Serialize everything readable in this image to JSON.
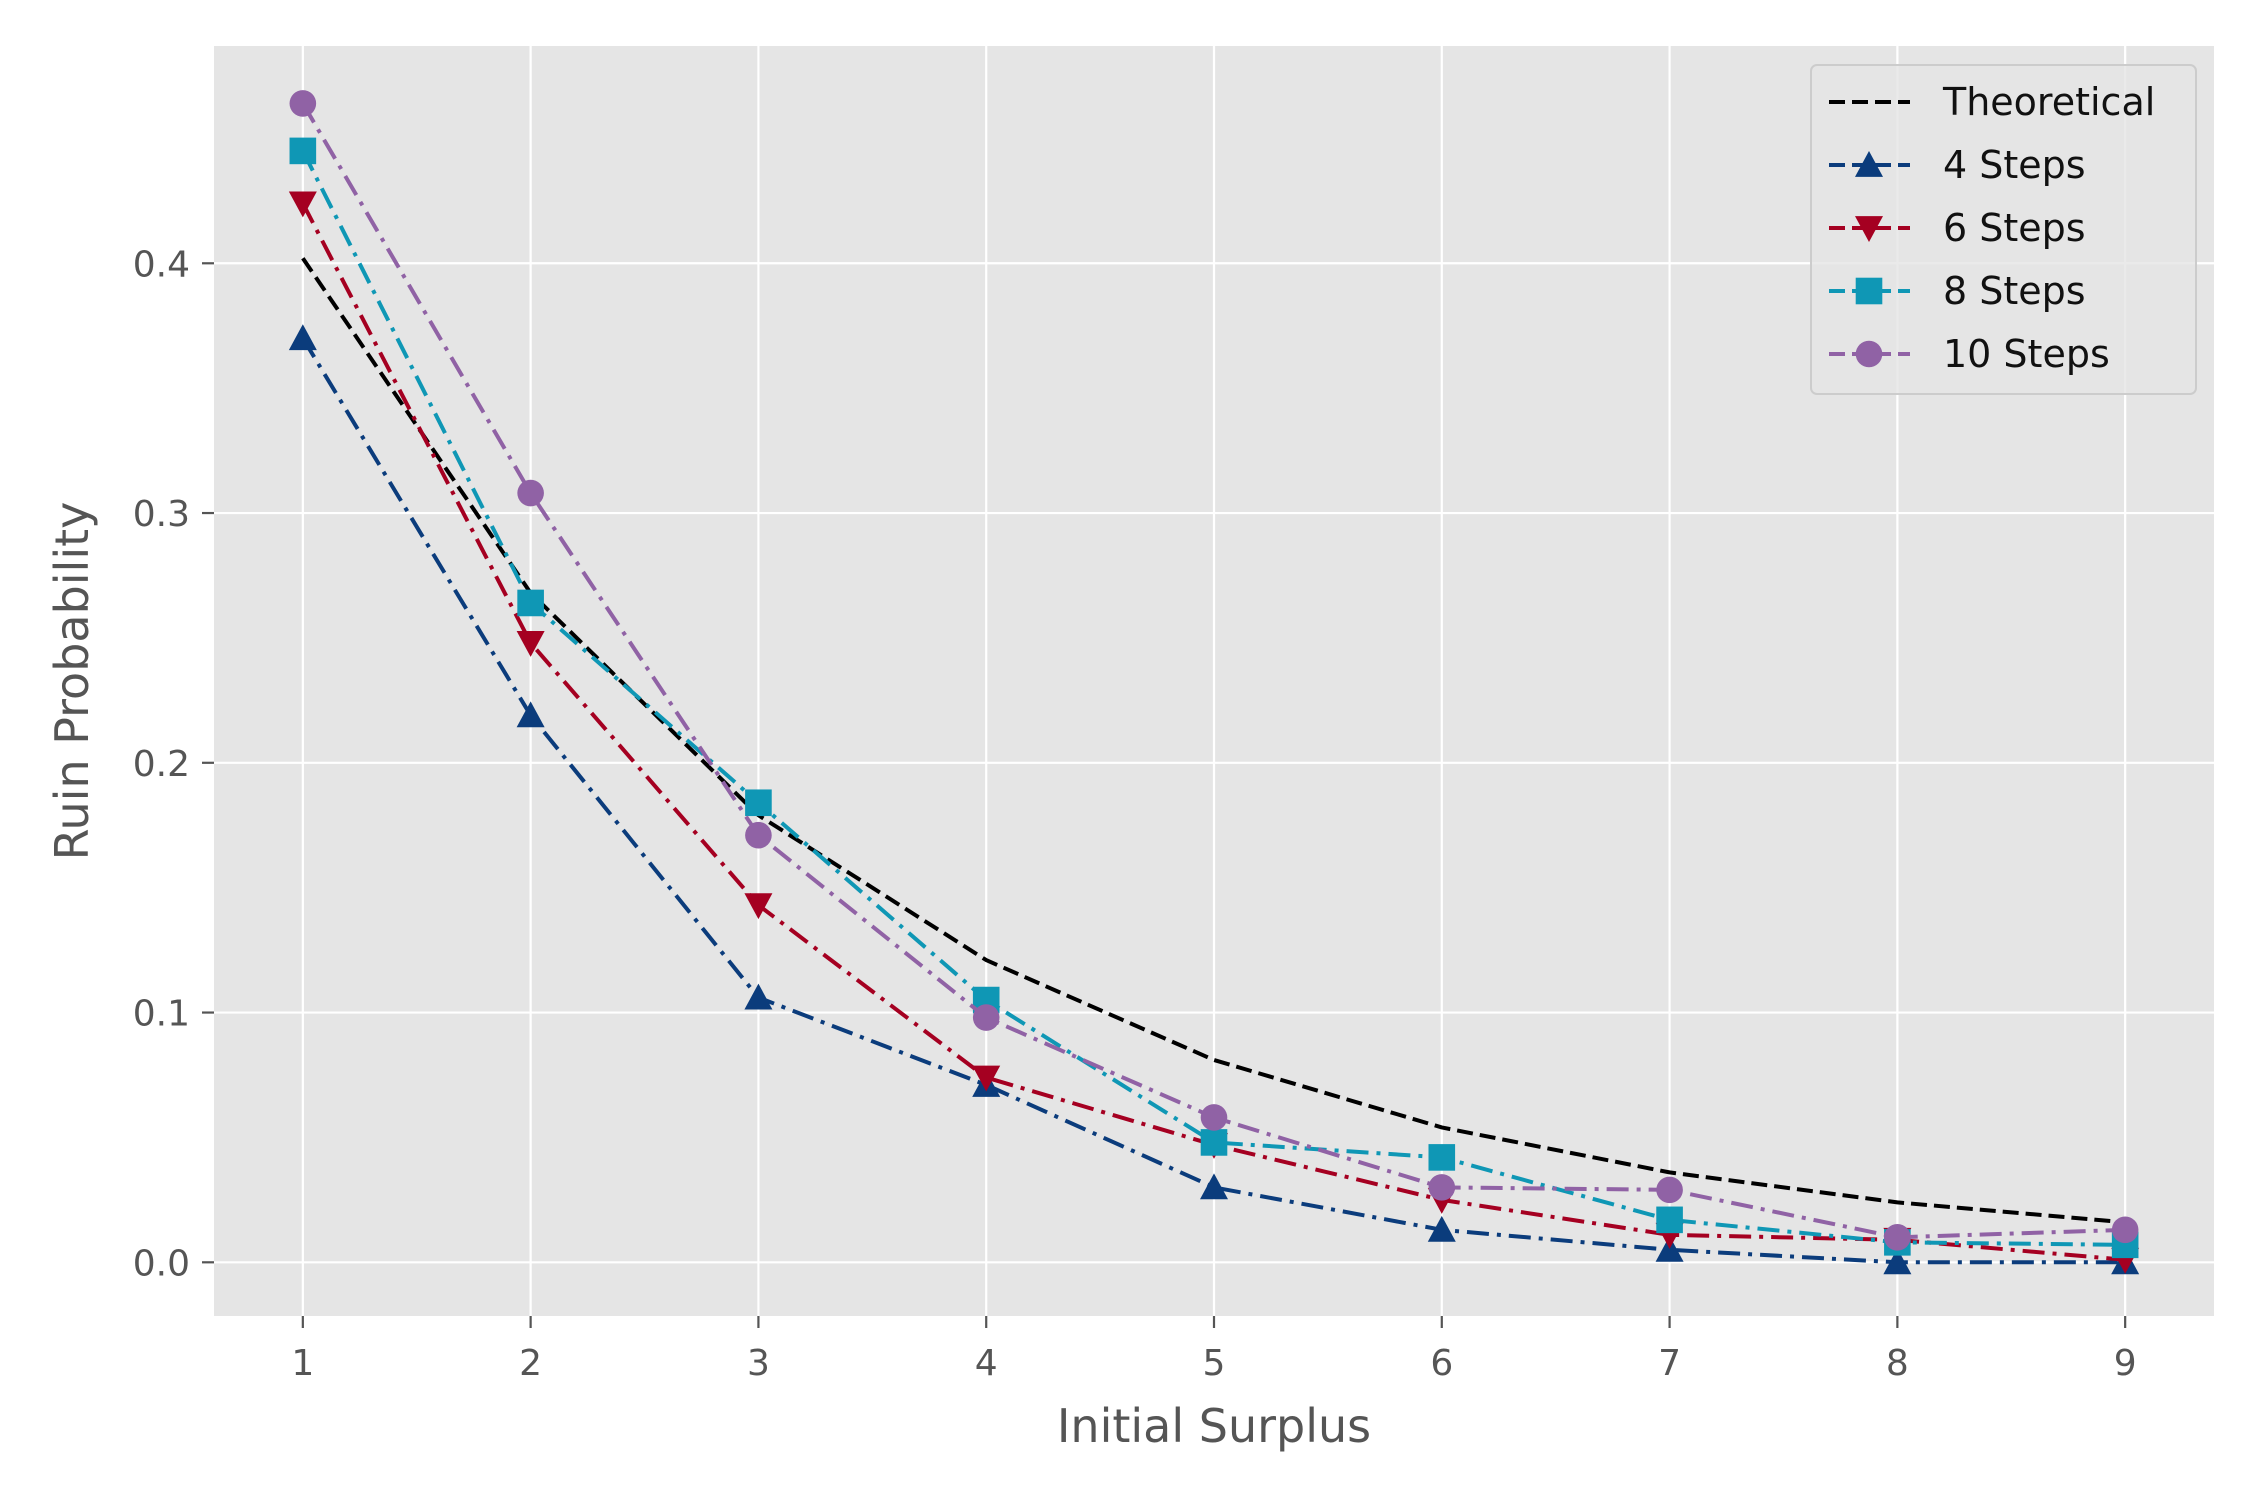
{
  "chart_data": {
    "type": "line",
    "title": "",
    "xlabel": "Initial Surplus",
    "ylabel": "Ruin Probability",
    "x": [
      1,
      2,
      3,
      4,
      5,
      6,
      7,
      8,
      9
    ],
    "xlim": [
      0.61,
      9.39
    ],
    "ylim": [
      -0.0215,
      0.487
    ],
    "xticks": [
      1,
      2,
      3,
      4,
      5,
      6,
      7,
      8,
      9
    ],
    "xtick_labels": [
      "1",
      "2",
      "3",
      "4",
      "5",
      "6",
      "7",
      "8",
      "9"
    ],
    "yticks": [
      0.0,
      0.1,
      0.2,
      0.3,
      0.4
    ],
    "ytick_labels": [
      "0.0",
      "0.1",
      "0.2",
      "0.3",
      "0.4"
    ],
    "grid": true,
    "legend_position": "top-right",
    "series": [
      {
        "name": "Theoretical",
        "values": [
          0.402,
          0.268,
          0.179,
          0.121,
          0.081,
          0.054,
          0.036,
          0.024,
          0.016
        ],
        "color": "#000000",
        "marker": "none",
        "dash": "dashed"
      },
      {
        "name": "4 Steps",
        "values": [
          0.37,
          0.219,
          0.106,
          0.071,
          0.03,
          0.013,
          0.005,
          0.0,
          0.0
        ],
        "color": "#0b3c7c",
        "marker": "triangle-up",
        "dash": "dashdot"
      },
      {
        "name": "6 Steps",
        "values": [
          0.424,
          0.248,
          0.143,
          0.074,
          0.047,
          0.025,
          0.011,
          0.009,
          0.001
        ],
        "color": "#a50021",
        "marker": "triangle-down",
        "dash": "dashdot"
      },
      {
        "name": "8 Steps",
        "values": [
          0.445,
          0.264,
          0.184,
          0.105,
          0.048,
          0.042,
          0.017,
          0.008,
          0.007
        ],
        "color": "#0f97b5",
        "marker": "square",
        "dash": "dashdot"
      },
      {
        "name": "10 Steps",
        "values": [
          0.464,
          0.308,
          0.171,
          0.098,
          0.058,
          0.03,
          0.029,
          0.01,
          0.013
        ],
        "color": "#9062a5",
        "marker": "circle",
        "dash": "dashdot"
      }
    ]
  }
}
